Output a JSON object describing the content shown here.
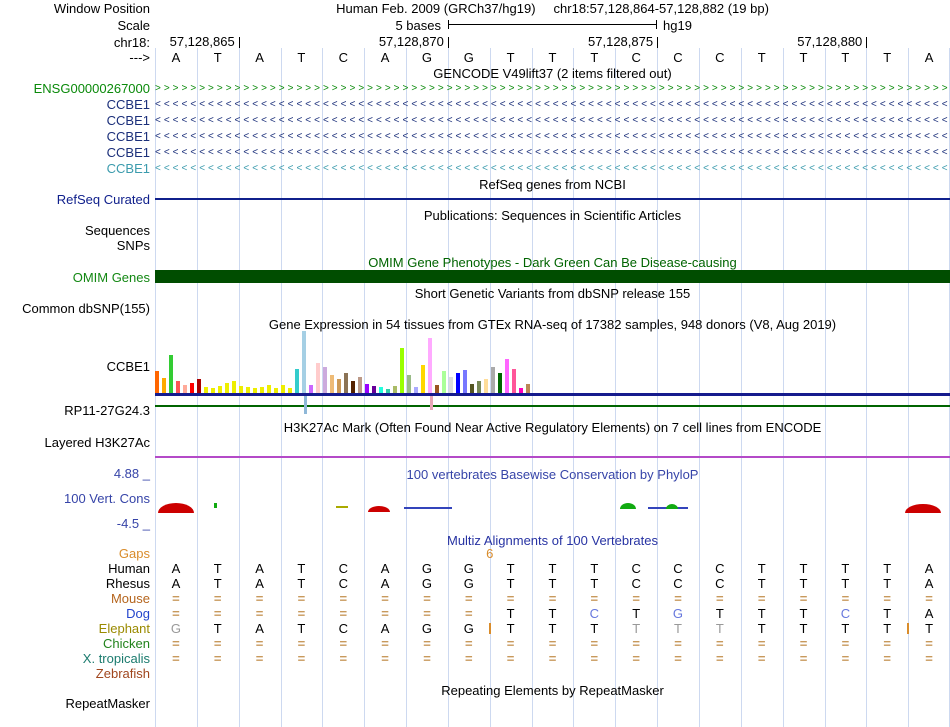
{
  "colors": {
    "gridline": "#cdd9f0",
    "navy": "#151b8d",
    "refseq_blue": "#10208c",
    "omim_green_dark": "#004d00",
    "omim_green_title": "#006400",
    "omim_green_label": "#138813",
    "rp11_green": "#006400",
    "h3k27ac_purple": "#b44ac8",
    "phylop_blue": "#3644a8",
    "multiz_blue": "#2733a3",
    "orange": "#d98c2b",
    "tan_eq": "#c8995c",
    "blue_letter": "#6677dd",
    "gray_letter": "#999999"
  },
  "header": {
    "left_label": "Window Position",
    "assembly_title": "Human Feb. 2009 (GRCh37/hg19)",
    "position": "chr18:57,128,864-57,128,882 (19 bp)"
  },
  "scale": {
    "left_label": "Scale",
    "value": "5 bases",
    "assembly": "hg19"
  },
  "ruler": {
    "left_label": "chr18:",
    "marks": [
      [
        "57,128,865",
        2
      ],
      [
        "57,128,870",
        7
      ],
      [
        "57,128,875",
        12
      ],
      [
        "57,128,880",
        17
      ]
    ]
  },
  "sequence": {
    "left_label": "--->",
    "bases": "ATATCAGGTTTCCCTTTTA"
  },
  "gencode": {
    "title": "GENCODE V49lift37 (2 items filtered out)",
    "genes": [
      {
        "label": "ENSG00000267000",
        "dir": ">",
        "color": "#0a8a0a"
      },
      {
        "label": "CCBE1",
        "dir": "<",
        "color": "#1b2f7a"
      },
      {
        "label": "CCBE1",
        "dir": "<",
        "color": "#1b2f7a"
      },
      {
        "label": "CCBE1",
        "dir": "<",
        "color": "#1b2f7a"
      },
      {
        "label": "CCBE1",
        "dir": "<",
        "color": "#1b2f7a"
      },
      {
        "label": "CCBE1",
        "dir": "<",
        "color": "#3b9bad"
      }
    ]
  },
  "refseq": {
    "title": "RefSeq genes from NCBI",
    "left_label": "RefSeq Curated"
  },
  "publications": {
    "title": "Publications: Sequences in Scientific Articles",
    "row_labels": [
      "Sequences",
      "SNPs"
    ]
  },
  "omim": {
    "title": "OMIM Gene Phenotypes - Dark Green Can Be Disease-causing",
    "left_label": "OMIM Genes"
  },
  "dbsnp": {
    "title": "Short Genetic Variants from dbSNP release 155",
    "left_label": "Common dbSNP(155)"
  },
  "gtex": {
    "title": "Gene Expression in 54 tissues from GTEx RNA-seq of 17382 samples, 948 donors (V8, Aug 2019)",
    "left_label": "CCBE1",
    "bars": [
      [
        22,
        "#FF6600"
      ],
      [
        15,
        "#FFAA00"
      ],
      [
        38,
        "#33CC33"
      ],
      [
        12,
        "#FF5555"
      ],
      [
        8,
        "#FFAA99"
      ],
      [
        10,
        "#FF0000"
      ],
      [
        14,
        "#AA0000"
      ],
      [
        6,
        "#EEEE00"
      ],
      [
        5,
        "#EEEE00"
      ],
      [
        7,
        "#EEEE00"
      ],
      [
        10,
        "#EEEE00"
      ],
      [
        12,
        "#EEEE00"
      ],
      [
        7,
        "#EEEE00"
      ],
      [
        6,
        "#EEEE00"
      ],
      [
        5,
        "#EEEE00"
      ],
      [
        6,
        "#EEEE00"
      ],
      [
        8,
        "#EEEE00"
      ],
      [
        5,
        "#EEEE00"
      ],
      [
        8,
        "#EEEE00"
      ],
      [
        5,
        "#EEEE00"
      ],
      [
        24,
        "#33CCCC"
      ],
      [
        62,
        "#A5CFE4"
      ],
      [
        8,
        "#CC66FF"
      ],
      [
        30,
        "#FFCCCC"
      ],
      [
        26,
        "#CCAADD"
      ],
      [
        18,
        "#EEBB77"
      ],
      [
        14,
        "#CC9955"
      ],
      [
        20,
        "#8B7355"
      ],
      [
        12,
        "#552200"
      ],
      [
        16,
        "#BB9988"
      ],
      [
        9,
        "#9900FF"
      ],
      [
        7,
        "#660099"
      ],
      [
        6,
        "#22FFDD"
      ],
      [
        4,
        "#33CCAA"
      ],
      [
        7,
        "#AABB66"
      ],
      [
        45,
        "#99FF00"
      ],
      [
        18,
        "#99BB88"
      ],
      [
        6,
        "#AAAAFF"
      ],
      [
        28,
        "#FFD700"
      ],
      [
        55,
        "#FFAAFF"
      ],
      [
        8,
        "#995522"
      ],
      [
        22,
        "#AAFF99"
      ],
      [
        16,
        "#DDDDDD"
      ],
      [
        20,
        "#0000FF"
      ],
      [
        23,
        "#7777FF"
      ],
      [
        9,
        "#555522"
      ],
      [
        12,
        "#778855"
      ],
      [
        14,
        "#FFDD99"
      ],
      [
        26,
        "#AAAAAA"
      ],
      [
        20,
        "#006600"
      ],
      [
        34,
        "#FF66FF"
      ],
      [
        24,
        "#FF5599"
      ],
      [
        5,
        "#FF00BB"
      ],
      [
        9,
        "#BB8855"
      ]
    ]
  },
  "rp11": {
    "left_label": "RP11-27G24.3",
    "ticks": [
      [
        304,
        18,
        "#8fb8d8"
      ],
      [
        430,
        14,
        "#e8a6b6"
      ]
    ]
  },
  "h3k27ac": {
    "title": "H3K27Ac Mark (Often Found Near Active Regulatory Elements) on 7 cell lines from ENCODE",
    "left_label": "Layered H3K27Ac"
  },
  "phylop": {
    "title": "100 vertebrates Basewise Conservation by PhyloP",
    "left_label": "100 Vert. Cons",
    "max_label": "4.88 _",
    "min_label": "-4.5 _",
    "marks": [
      [
        158,
        36,
        10,
        5,
        "#cc0000",
        "hump"
      ],
      [
        214,
        3,
        5,
        10,
        "#11aa11",
        "bar"
      ],
      [
        336,
        12,
        2,
        10,
        "#aaaa00",
        "bar"
      ],
      [
        368,
        22,
        6,
        6,
        "#cc0000",
        "hump"
      ],
      [
        404,
        48,
        2,
        9,
        "#3344bb",
        "bar"
      ],
      [
        620,
        16,
        6,
        9,
        "#11aa11",
        "hump"
      ],
      [
        648,
        40,
        2,
        9,
        "#3344bb",
        "bar"
      ],
      [
        666,
        12,
        5,
        9,
        "#11aa11",
        "hump"
      ],
      [
        905,
        36,
        9,
        5,
        "#cc0000",
        "hump"
      ]
    ]
  },
  "multiz": {
    "title": "Multiz Alignments of 100 Vertebrates",
    "gaps_label": "Gaps",
    "gap_numbers": [
      [
        "6",
        8
      ]
    ],
    "rows": [
      {
        "name": "Human",
        "color": "#000000",
        "cells": "ATATCAGGTTTCCCTTTTA",
        "styles": "kkkkkkkkkkkkkkkkkkk"
      },
      {
        "name": "Rhesus",
        "color": "#000000",
        "cells": "ATATCAGGTTTCCCTTTTA",
        "styles": "kkkkkkkkkkkkkkkkkkk"
      },
      {
        "name": "Mouse",
        "color": "#b5651d",
        "cells": "===================",
        "styles": "eeeeeeeeeeeeeeeeeee"
      },
      {
        "name": "Dog",
        "color": "#2244cc",
        "cells": "========TTCTGTTTCTA",
        "styles": "eeeeeeeekkukukkkukk"
      },
      {
        "name": "Elephant",
        "color": "#9a8a00",
        "cells": "GTATCAGGTTTTTTTTTTT",
        "styles": "gkkkkkkkkkkgggkkkkk",
        "inserts": [
          8,
          18
        ]
      },
      {
        "name": "Chicken",
        "color": "#22831c",
        "cells": "===================",
        "styles": "eeeeeeeeeeeeeeeeeee"
      },
      {
        "name": "X. tropicalis",
        "color": "#1b7b6e",
        "cells": "===================",
        "styles": "eeeeeeeeeeeeeeeeeee"
      },
      {
        "name": "Zebrafish",
        "color": "#a0461e",
        "cells": "",
        "styles": ""
      }
    ]
  },
  "repeats": {
    "title": "Repeating Elements by RepeatMasker",
    "left_label": "RepeatMasker"
  }
}
